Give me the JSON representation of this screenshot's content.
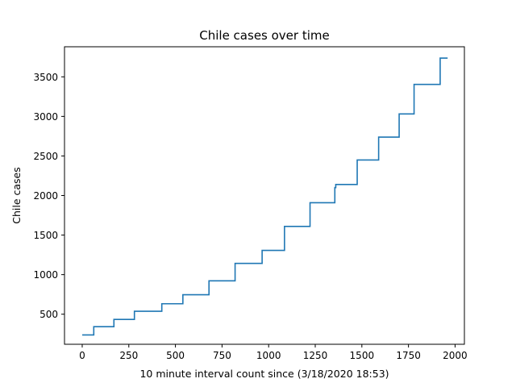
{
  "chart_data": {
    "type": "line",
    "title": "Chile cases over time",
    "xlabel": "10 minute interval count since (3/18/2020 18:53)",
    "ylabel": "Chile cases",
    "xlim": [
      -95,
      2050
    ],
    "ylim": [
      120,
      3880
    ],
    "xticks": [
      0,
      250,
      500,
      750,
      1000,
      1250,
      1500,
      1750,
      2000
    ],
    "yticks": [
      500,
      1000,
      1500,
      2000,
      2500,
      3000,
      3500
    ],
    "grid": false,
    "step": true,
    "series": [
      {
        "color": "#1f77b4",
        "x": [
          0,
          62,
          62,
          170,
          170,
          280,
          280,
          427,
          427,
          540,
          540,
          680,
          680,
          820,
          820,
          965,
          965,
          1085,
          1085,
          1222,
          1222,
          1355,
          1355,
          1360,
          1360,
          1475,
          1475,
          1590,
          1590,
          1700,
          1700,
          1780,
          1780,
          1920,
          1920,
          1960
        ],
        "y": [
          238,
          238,
          342,
          342,
          434,
          434,
          537,
          537,
          632,
          632,
          746,
          746,
          922,
          922,
          1142,
          1142,
          1306,
          1306,
          1610,
          1610,
          1909,
          1909,
          2100,
          2100,
          2139,
          2139,
          2449,
          2449,
          2738,
          2738,
          3031,
          3031,
          3404,
          3404,
          3737,
          3737
        ]
      }
    ]
  }
}
